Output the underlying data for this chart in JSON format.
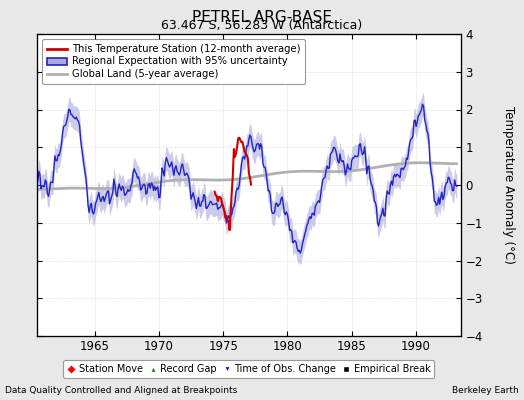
{
  "title": "PETREL ARG-BASE",
  "subtitle": "63.467 S, 56.283 W (Antarctica)",
  "ylabel": "Temperature Anomaly (°C)",
  "ylim": [
    -4,
    4
  ],
  "xlim": [
    1960.5,
    1993.5
  ],
  "xticks": [
    1965,
    1970,
    1975,
    1980,
    1985,
    1990
  ],
  "yticks": [
    -4,
    -3,
    -2,
    -1,
    0,
    1,
    2,
    3,
    4
  ],
  "footnote_left": "Data Quality Controlled and Aligned at Breakpoints",
  "footnote_right": "Berkeley Earth",
  "bg_color": "#e8e8e8",
  "plot_bg_color": "#ffffff",
  "regional_color": "#2222cc",
  "regional_fill_color": "#aaaadd",
  "station_color": "#cc0000",
  "global_color": "#b0b0b0",
  "global_linewidth": 2.0,
  "regional_linewidth": 1.0,
  "station_linewidth": 1.5
}
